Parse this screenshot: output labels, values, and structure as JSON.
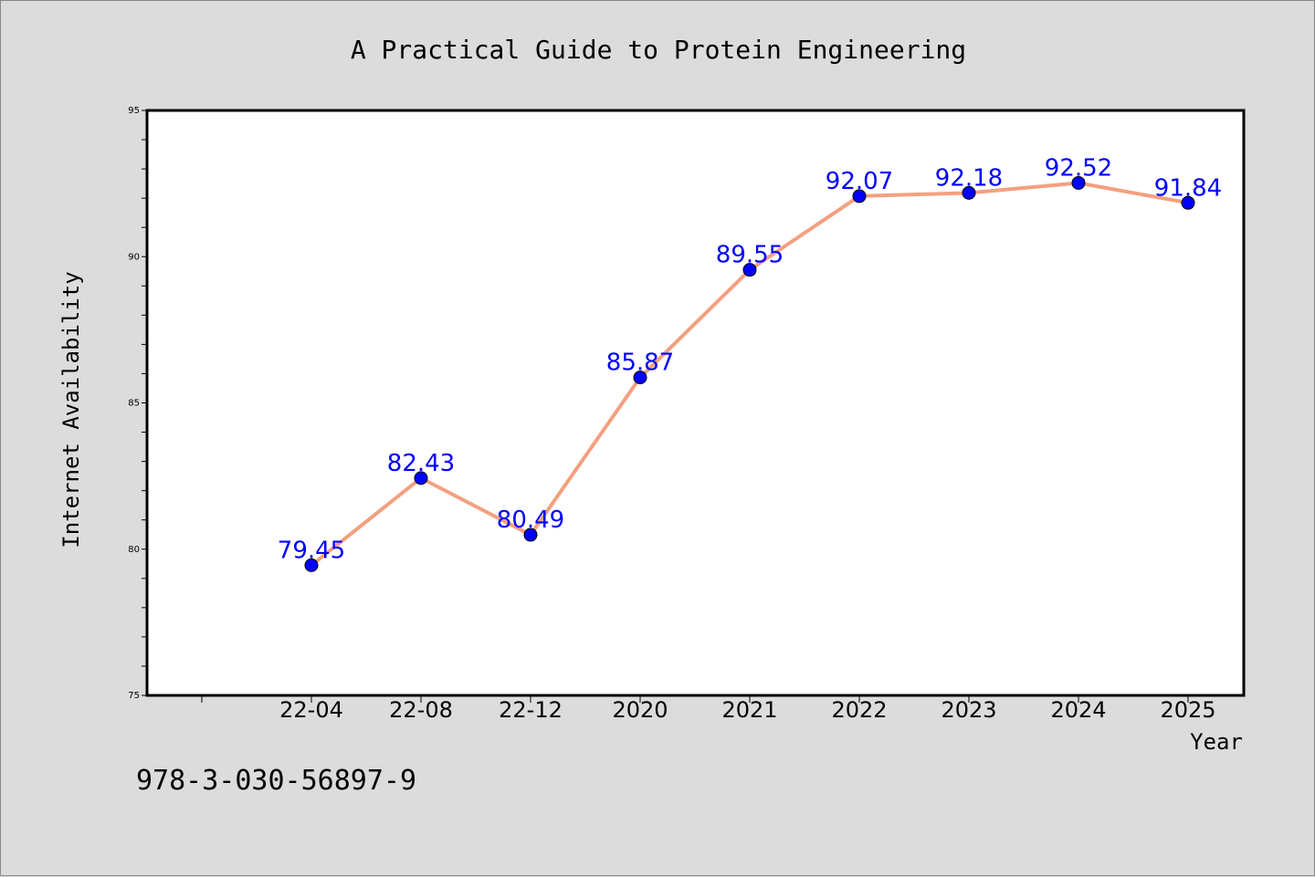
{
  "chart_data": {
    "type": "line",
    "title": "A Practical Guide to Protein Engineering",
    "xlabel": "Year",
    "ylabel": "Internet Availability",
    "categories": [
      "22-04",
      "22-08",
      "22-12",
      "2020",
      "2021",
      "2022",
      "2023",
      "2024",
      "2025"
    ],
    "values": [
      79.45,
      82.43,
      80.49,
      85.87,
      89.55,
      92.07,
      92.18,
      92.52,
      91.84
    ],
    "data_labels": [
      "79.45",
      "82.43",
      "80.49",
      "85.87",
      "89.55",
      "92.07",
      "92.18",
      "92.52",
      "91.84"
    ],
    "ylim": [
      75,
      95
    ],
    "yticks": [
      75,
      80,
      85,
      90,
      95
    ],
    "ytick_labels": [
      "75",
      "80",
      "85",
      "90",
      "95"
    ],
    "grid": false,
    "legend": "none",
    "colors": {
      "line": "#f4a07f",
      "marker": "#0000ff",
      "data_label": "#0000ff",
      "background": "#dcdcdc",
      "plot_background": "#ffffff"
    }
  },
  "footer": {
    "isbn": "978-3-030-56897-9"
  }
}
